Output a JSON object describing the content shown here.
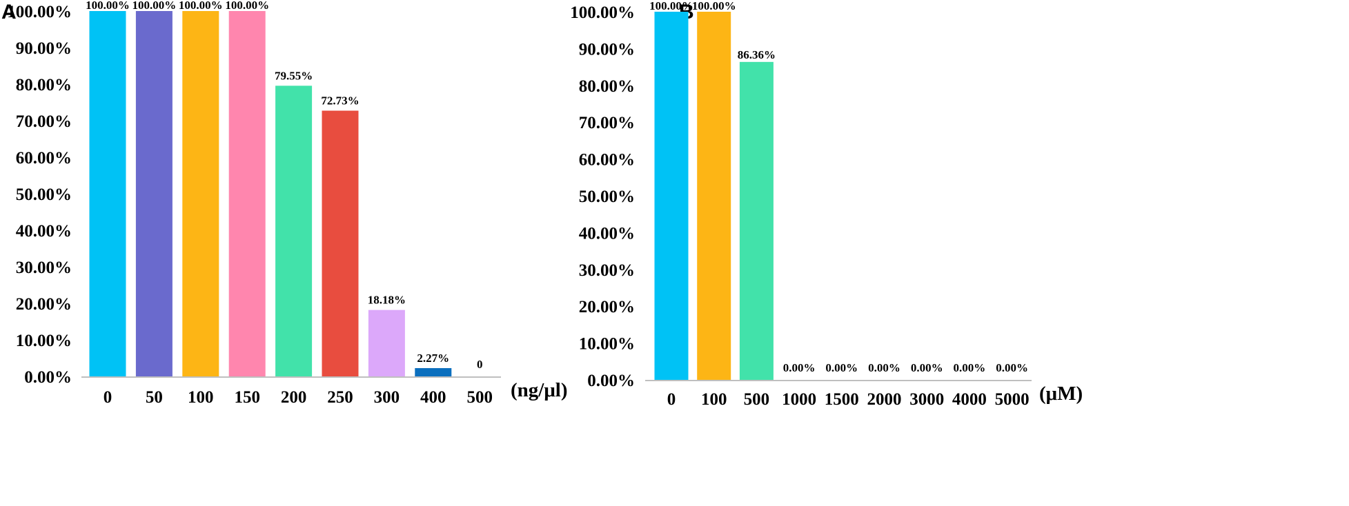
{
  "chart_data": [
    {
      "type": "bar",
      "panel": "A",
      "unit_label": "(ng/μl)",
      "categories": [
        "0",
        "50",
        "100",
        "150",
        "200",
        "250",
        "300",
        "400",
        "500"
      ],
      "values": [
        100,
        100,
        100,
        100,
        79.55,
        72.73,
        18.18,
        2.27,
        0
      ],
      "data_labels": [
        "100.00%",
        "100.00%",
        "100.00%",
        "100.00%",
        "79.55%",
        "72.73%",
        "18.18%",
        "2.27%",
        "0"
      ],
      "colors": [
        "#00c2f5",
        "#6a6acd",
        "#fdb515",
        "#ff86ae",
        "#42e2aa",
        "#e84d3f",
        "#dca8fa",
        "#0b6fbe",
        "#ffffff"
      ],
      "ylim": [
        0,
        100
      ],
      "yticks": [
        "0.00%",
        "10.00%",
        "20.00%",
        "30.00%",
        "40.00%",
        "50.00%",
        "60.00%",
        "70.00%",
        "80.00%",
        "90.00%",
        "100.00%"
      ],
      "grid": false
    },
    {
      "type": "bar",
      "panel": "B",
      "unit_label": "(μM)",
      "categories": [
        "0",
        "100",
        "500",
        "1000",
        "1500",
        "2000",
        "3000",
        "4000",
        "5000"
      ],
      "values": [
        100,
        100,
        86.36,
        0,
        0,
        0,
        0,
        0,
        0
      ],
      "data_labels": [
        "100.00%",
        "100.00%",
        "86.36%",
        "0.00%",
        "0.00%",
        "0.00%",
        "0.00%",
        "0.00%",
        "0.00%"
      ],
      "colors": [
        "#00c2f5",
        "#fdb515",
        "#42e2aa",
        "#ffffff",
        "#ffffff",
        "#ffffff",
        "#ffffff",
        "#ffffff",
        "#ffffff"
      ],
      "ylim": [
        0,
        100
      ],
      "yticks": [
        "0.00%",
        "10.00%",
        "20.00%",
        "30.00%",
        "40.00%",
        "50.00%",
        "60.00%",
        "70.00%",
        "80.00%",
        "90.00%",
        "100.00%"
      ],
      "grid": false
    }
  ]
}
